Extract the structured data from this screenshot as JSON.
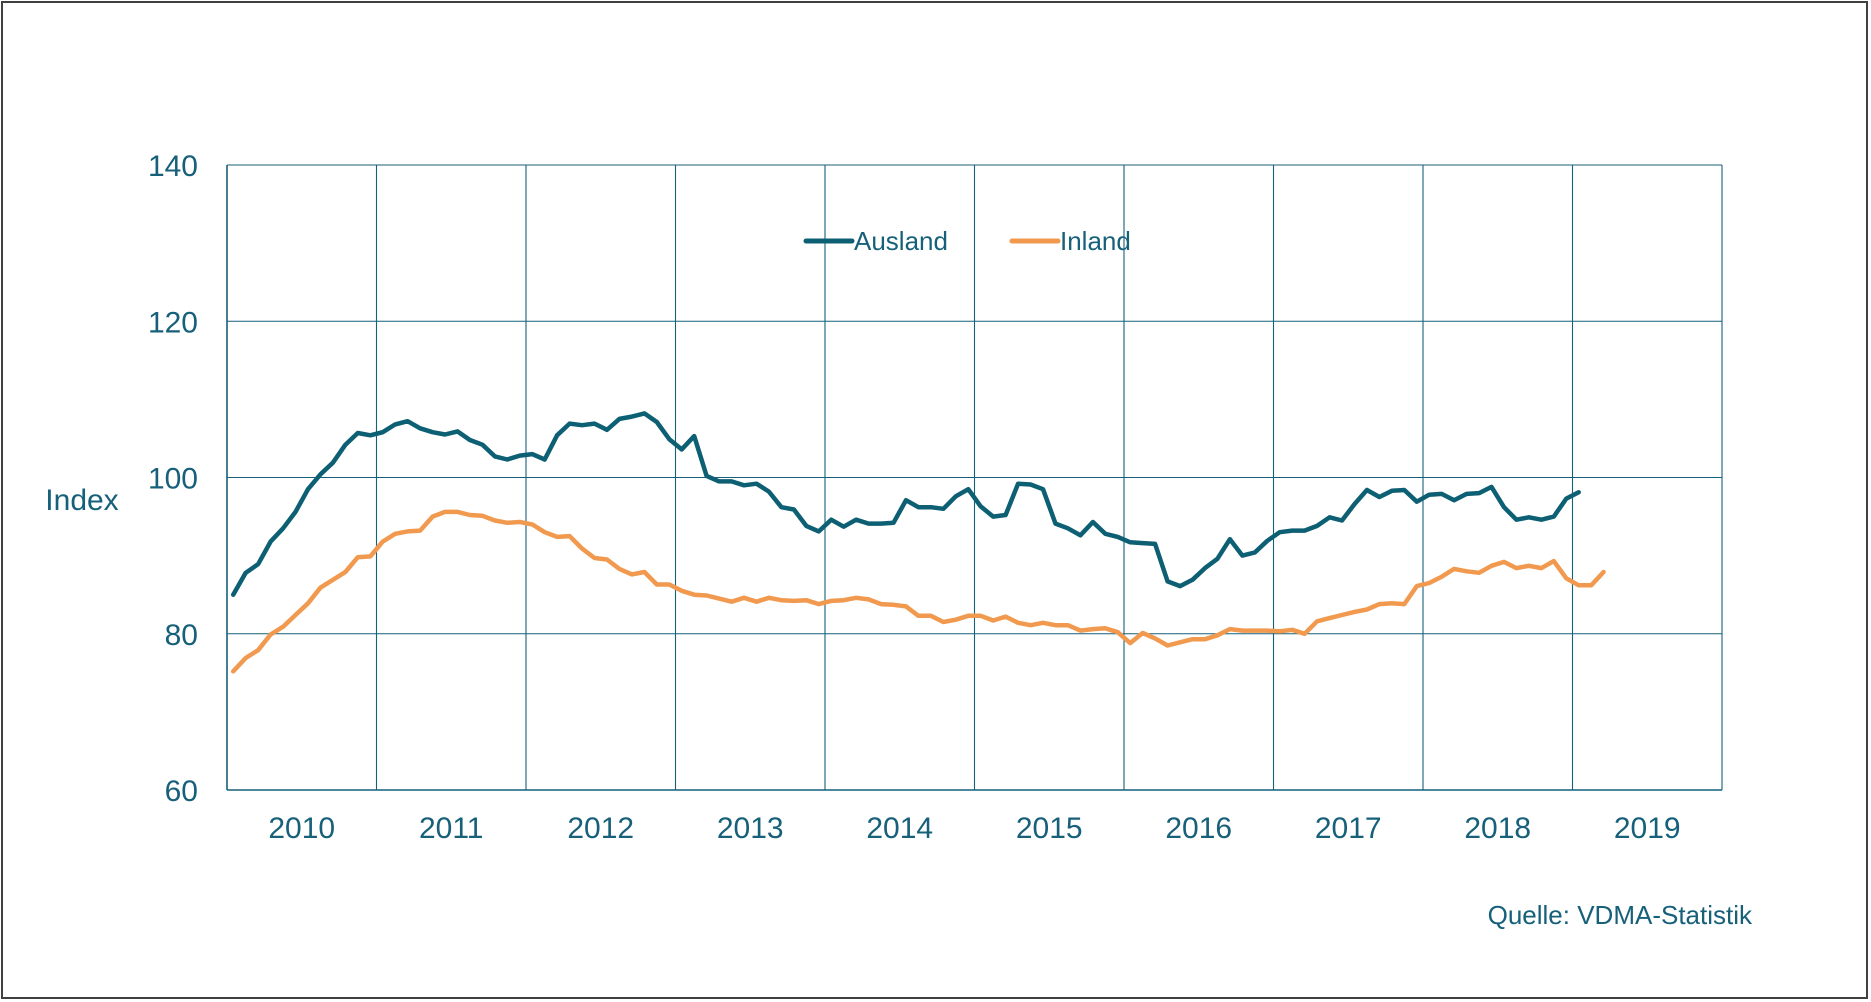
{
  "colors": {
    "text": "#17607a",
    "grid": "#17607a",
    "ausland": "#0d5f73",
    "inland": "#f19a4f"
  },
  "source_label": "Quelle: VDMA-Statistik",
  "chart_data": {
    "type": "line",
    "ylabel": "Index",
    "ylim": [
      60,
      140
    ],
    "yticks": [
      60,
      80,
      100,
      120,
      140
    ],
    "xlim": [
      2010,
      2020
    ],
    "xticks": [
      "2010",
      "2011",
      "2012",
      "2013",
      "2014",
      "2015",
      "2016",
      "2017",
      "2018",
      "2019"
    ],
    "grid": true,
    "legend_position": "top-center",
    "series": [
      {
        "name": "Ausland",
        "color": "#0d5f73",
        "start": "2010-01",
        "values": [
          85.0,
          87.8,
          88.9,
          91.8,
          93.5,
          95.6,
          98.5,
          100.4,
          101.9,
          104.2,
          105.7,
          105.4,
          105.8,
          106.8,
          107.2,
          106.3,
          105.8,
          105.5,
          105.9,
          104.8,
          104.2,
          102.7,
          102.3,
          102.8,
          103.0,
          102.3,
          105.4,
          106.9,
          106.7,
          106.9,
          106.1,
          107.5,
          107.8,
          108.2,
          107.1,
          104.9,
          103.6,
          105.3,
          100.2,
          99.5,
          99.5,
          99.0,
          99.2,
          98.2,
          96.2,
          95.9,
          93.8,
          93.1,
          94.6,
          93.7,
          94.6,
          94.1,
          94.1,
          94.2,
          97.1,
          96.2,
          96.2,
          96.0,
          97.6,
          98.5,
          96.3,
          95.0,
          95.2,
          99.2,
          99.1,
          98.5,
          94.1,
          93.5,
          92.6,
          94.3,
          92.8,
          92.4,
          91.7,
          91.6,
          91.5,
          86.7,
          86.1,
          86.9,
          88.4,
          89.6,
          92.1,
          90.0,
          90.4,
          91.9,
          93.0,
          93.2,
          93.2,
          93.8,
          94.9,
          94.5,
          96.6,
          98.4,
          97.5,
          98.3,
          98.4,
          96.9,
          97.8,
          97.9,
          97.1,
          97.9,
          98.0,
          98.8,
          96.2,
          94.6,
          94.9,
          94.6,
          95.0,
          97.3,
          98.1
        ]
      },
      {
        "name": "Inland",
        "color": "#f19a4f",
        "start": "2010-01",
        "values": [
          75.2,
          76.9,
          77.9,
          79.9,
          80.9,
          82.4,
          83.9,
          85.9,
          86.9,
          87.9,
          89.8,
          89.9,
          91.8,
          92.8,
          93.1,
          93.2,
          95.0,
          95.6,
          95.6,
          95.2,
          95.1,
          94.5,
          94.2,
          94.3,
          94.0,
          93.0,
          92.4,
          92.5,
          90.9,
          89.7,
          89.5,
          88.3,
          87.6,
          87.9,
          86.3,
          86.3,
          85.5,
          85.0,
          84.9,
          84.5,
          84.1,
          84.6,
          84.1,
          84.6,
          84.3,
          84.2,
          84.3,
          83.8,
          84.2,
          84.3,
          84.6,
          84.4,
          83.8,
          83.7,
          83.5,
          82.3,
          82.3,
          81.5,
          81.8,
          82.3,
          82.3,
          81.7,
          82.2,
          81.4,
          81.1,
          81.4,
          81.1,
          81.1,
          80.4,
          80.6,
          80.7,
          80.2,
          78.8,
          80.1,
          79.4,
          78.5,
          78.9,
          79.3,
          79.3,
          79.8,
          80.6,
          80.4,
          80.4,
          80.4,
          80.3,
          80.5,
          80.0,
          81.6,
          82.0,
          82.4,
          82.8,
          83.1,
          83.8,
          83.9,
          83.8,
          86.1,
          86.5,
          87.3,
          88.3,
          88.0,
          87.8,
          88.7,
          89.2,
          88.4,
          88.7,
          88.4,
          89.3,
          87.1,
          86.2,
          86.2,
          87.9
        ]
      }
    ]
  }
}
